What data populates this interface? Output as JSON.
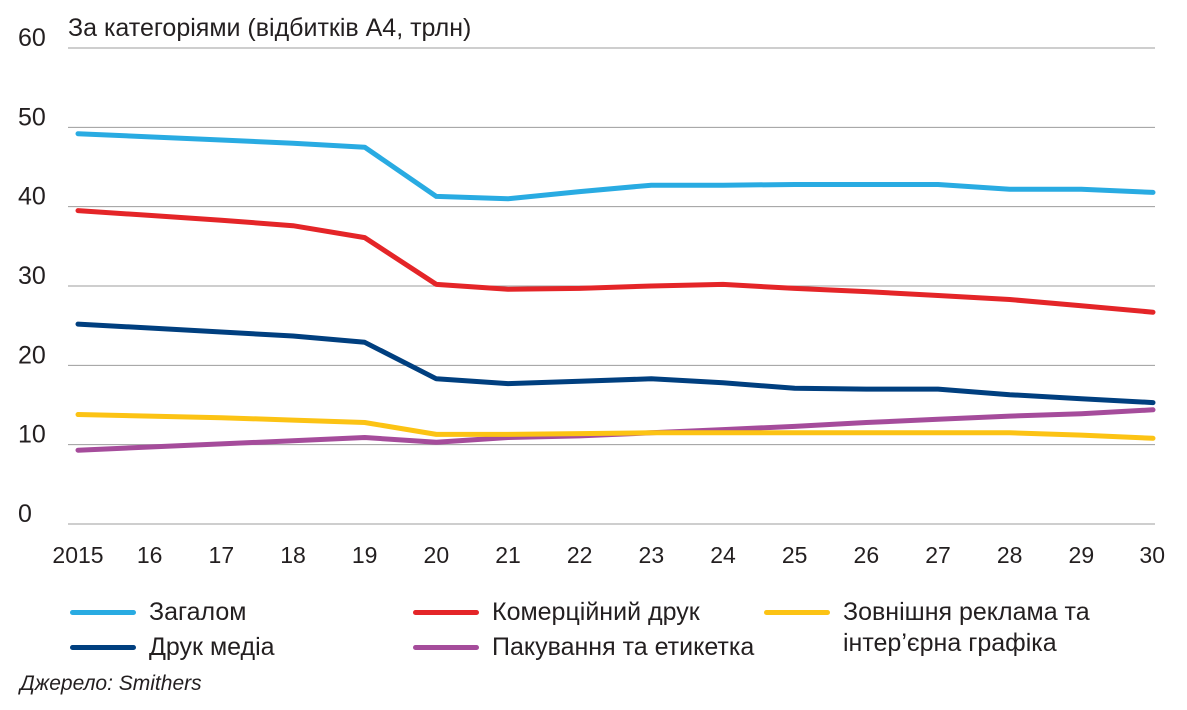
{
  "chart_data": {
    "type": "line",
    "title": "За категоріями (відбитків А4, трлн)",
    "x": [
      "2015",
      "16",
      "17",
      "18",
      "19",
      "20",
      "21",
      "22",
      "23",
      "24",
      "25",
      "26",
      "27",
      "28",
      "29",
      "30"
    ],
    "ylim": [
      0,
      60
    ],
    "yticks": [
      0,
      10,
      20,
      30,
      40,
      50,
      60
    ],
    "grid": true,
    "legend_position": "bottom",
    "series": [
      {
        "name": "Загалом",
        "color": "#29abe2",
        "values": [
          49.2,
          48.8,
          48.4,
          48.0,
          47.5,
          41.3,
          41.0,
          41.9,
          42.7,
          42.7,
          42.8,
          42.8,
          42.8,
          42.2,
          42.2,
          41.8
        ]
      },
      {
        "name": "Комерційний друк",
        "color": "#e42528",
        "values": [
          39.5,
          38.9,
          38.3,
          37.6,
          36.1,
          30.2,
          29.6,
          29.7,
          30.0,
          30.2,
          29.7,
          29.3,
          28.8,
          28.3,
          27.5,
          26.7
        ]
      },
      {
        "name": "Зовнішня реклама та\nінтер’єрна графіка",
        "color": "#fcc314",
        "values": [
          13.8,
          13.6,
          13.4,
          13.1,
          12.8,
          11.3,
          11.3,
          11.4,
          11.5,
          11.5,
          11.5,
          11.5,
          11.5,
          11.5,
          11.2,
          10.8
        ]
      },
      {
        "name": "Друк медіа",
        "color": "#003f7f",
        "values": [
          25.2,
          24.7,
          24.2,
          23.7,
          22.9,
          18.3,
          17.7,
          18.0,
          18.3,
          17.8,
          17.1,
          17.0,
          17.0,
          16.3,
          15.8,
          15.3
        ]
      },
      {
        "name": "Пакування та етикетка",
        "color": "#a54c9b",
        "values": [
          9.3,
          9.7,
          10.1,
          10.5,
          10.9,
          10.3,
          10.9,
          11.1,
          11.5,
          11.9,
          12.3,
          12.8,
          13.2,
          13.6,
          13.9,
          14.4
        ]
      }
    ]
  },
  "source": "Джерело: Smithers"
}
